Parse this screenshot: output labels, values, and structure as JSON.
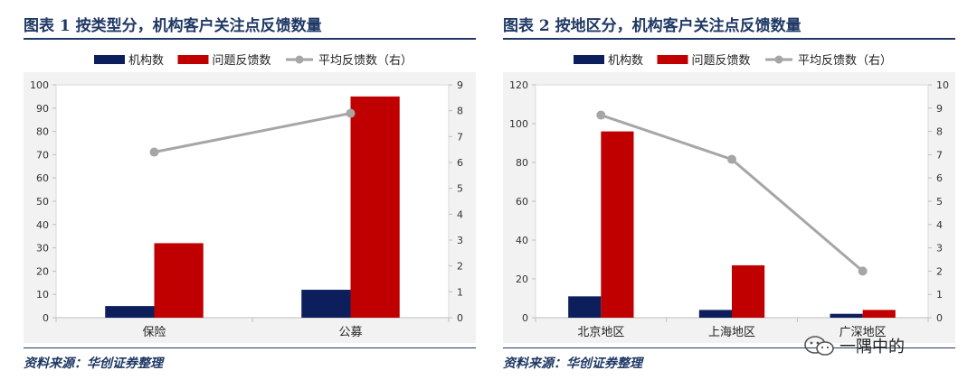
{
  "charts": [
    {
      "title": "图表 1   按类型分，机构客户关注点反馈数量",
      "source": "资料来源：华创证券整理"
    },
    {
      "title": "图表 2   按地区分，机构客户关注点反馈数量",
      "source": "资料来源：华创证券整理"
    }
  ],
  "watermark": "一隅中的",
  "colors": {
    "navy": "#0c1f5c",
    "red": "#c00000",
    "gray": "#a6a6a6",
    "title": "#1f3864"
  },
  "chart_data": [
    {
      "type": "bar",
      "categories": [
        "保险",
        "公募"
      ],
      "series": [
        {
          "name": "机构数",
          "values": [
            5,
            12
          ]
        },
        {
          "name": "问题反馈数",
          "values": [
            32,
            95
          ]
        },
        {
          "name": "平均反馈数（右）",
          "values": [
            6.4,
            7.9
          ],
          "type": "line",
          "axis": "right"
        }
      ],
      "ylim": [
        0,
        100
      ],
      "yticks": [
        0,
        10,
        20,
        30,
        40,
        50,
        60,
        70,
        80,
        90,
        100
      ],
      "y2lim": [
        0,
        9
      ],
      "y2ticks": [
        0,
        1,
        2,
        3,
        4,
        5,
        6,
        7,
        8,
        9
      ],
      "grid": false,
      "legend": "top"
    },
    {
      "type": "bar",
      "categories": [
        "北京地区",
        "上海地区",
        "广深地区"
      ],
      "series": [
        {
          "name": "机构数",
          "values": [
            11,
            4,
            2
          ]
        },
        {
          "name": "问题反馈数",
          "values": [
            96,
            27,
            4
          ]
        },
        {
          "name": "平均反馈数（右）",
          "values": [
            8.7,
            6.8,
            2.0
          ],
          "type": "line",
          "axis": "right"
        }
      ],
      "ylim": [
        0,
        120
      ],
      "yticks": [
        0,
        20,
        40,
        60,
        80,
        100,
        120
      ],
      "y2lim": [
        0,
        10
      ],
      "y2ticks": [
        0,
        1,
        2,
        3,
        4,
        5,
        6,
        7,
        8,
        9,
        10
      ],
      "grid": false,
      "legend": "top"
    }
  ]
}
